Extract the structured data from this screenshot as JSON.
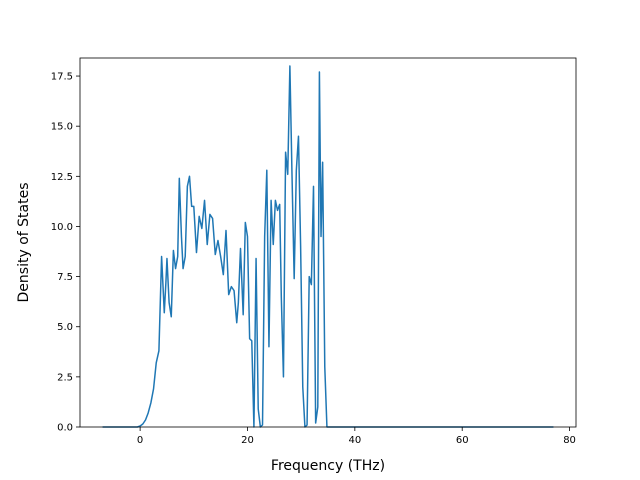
{
  "chart_data": {
    "type": "line",
    "title": "",
    "xlabel": "Frequency (THz)",
    "ylabel": "Density of States",
    "xlim": [
      -11.2,
      81.2
    ],
    "ylim": [
      0,
      18.4
    ],
    "grid": false,
    "line_color": "#1f77b4",
    "x_ticks": [
      0,
      20,
      40,
      60,
      80
    ],
    "x_tick_labels": [
      "0",
      "20",
      "40",
      "60",
      "80"
    ],
    "y_ticks": [
      0,
      2.5,
      5,
      7.5,
      10,
      12.5,
      15,
      17.5
    ],
    "y_tick_labels": [
      "0.0",
      "2.5",
      "5.0",
      "7.5",
      "10.0",
      "12.5",
      "15.0",
      "17.5"
    ],
    "series": [
      {
        "x": [
          -7,
          -4,
          -2,
          -0.5,
          0,
          0.5,
          1,
          1.5,
          2,
          2.5,
          3,
          3.5,
          4,
          4.5,
          4.8,
          5,
          5.4,
          5.8,
          6.2,
          6.6,
          7,
          7.3,
          7.7,
          8,
          8.4,
          8.8,
          9.2,
          9.6,
          10,
          10.5,
          11,
          11.5,
          12,
          12.5,
          13,
          13.5,
          14,
          14.5,
          15,
          15.5,
          16,
          16.5,
          17,
          17.5,
          18,
          18.3,
          18.7,
          19.2,
          19.6,
          20,
          20.4,
          20.8,
          21.2,
          21.6,
          22,
          22.4,
          22.8,
          23.2,
          23.6,
          24,
          24.4,
          24.8,
          25.2,
          25.6,
          26,
          26.3,
          26.7,
          27.1,
          27.5,
          27.9,
          28.3,
          28.7,
          29.1,
          29.5,
          29.9,
          30.3,
          30.7,
          31.1,
          31.5,
          31.9,
          32.3,
          32.7,
          33.1,
          33.4,
          33.7,
          34,
          34.4,
          34.8,
          35.2,
          35.6,
          35.9,
          36.2,
          36.6,
          37,
          37.3,
          37.6,
          38,
          38.4,
          39,
          41,
          50,
          60,
          70,
          77
        ],
        "y": [
          0,
          0,
          0,
          0,
          0.05,
          0.15,
          0.35,
          0.7,
          1.2,
          1.9,
          3.2,
          3.8,
          8.5,
          5.7,
          7.2,
          8.4,
          6.2,
          5.5,
          8.8,
          7.9,
          8.5,
          12.4,
          9.5,
          7.9,
          8.5,
          12,
          12.5,
          11,
          11,
          8.7,
          10.5,
          9.9,
          11.3,
          9.1,
          10.6,
          10.4,
          8.6,
          9.3,
          8.5,
          7.6,
          9.8,
          6.6,
          7,
          6.8,
          5.2,
          6.2,
          8.9,
          5.6,
          10.2,
          9.5,
          4.4,
          4.3,
          0,
          8.4,
          0.9,
          0,
          0.1,
          9.5,
          12.8,
          4,
          11.3,
          9.1,
          11.3,
          10.8,
          11.1,
          6.5,
          2.5,
          13.7,
          12.6,
          18,
          12.5,
          7.4,
          12.8,
          14.5,
          9,
          2,
          0,
          0.1,
          7.5,
          7.1,
          12,
          0.2,
          1,
          17.7,
          9.5,
          13.2,
          3,
          0,
          0,
          0,
          0,
          0,
          0,
          0,
          0,
          0,
          0,
          0,
          0,
          0,
          0,
          0,
          0,
          0
        ]
      }
    ]
  }
}
